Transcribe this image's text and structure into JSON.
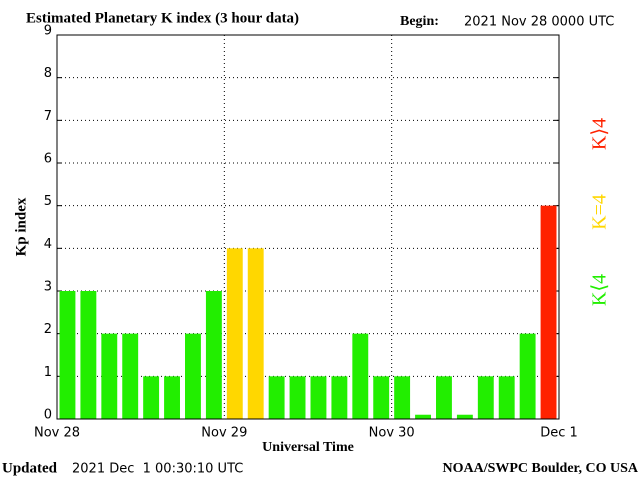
{
  "chart_data": {
    "type": "bar",
    "title": "Estimated Planetary K index (3 hour data)",
    "begin_label": "Begin:",
    "begin": "2021 Nov 28 0000 UTC",
    "y_label": "Kp index",
    "x_label": "Universal Time",
    "updated_label": "Updated",
    "updated": "2021 Dec  1 00:30:10 UTC",
    "credit": "NOAA/SWPC Boulder, CO USA",
    "values": [
      3,
      3,
      2,
      2,
      1,
      1,
      2,
      3,
      4,
      4,
      1,
      1,
      1,
      1,
      2,
      1,
      1,
      0.1,
      1,
      0.1,
      1,
      1,
      2,
      5
    ],
    "colors": [
      "#22ee00",
      "#22ee00",
      "#22ee00",
      "#22ee00",
      "#22ee00",
      "#22ee00",
      "#22ee00",
      "#22ee00",
      "#ffd700",
      "#ffd700",
      "#22ee00",
      "#22ee00",
      "#22ee00",
      "#22ee00",
      "#22ee00",
      "#22ee00",
      "#22ee00",
      "#22ee00",
      "#22ee00",
      "#22ee00",
      "#22ee00",
      "#22ee00",
      "#22ee00",
      "#ff2200"
    ],
    "legend": [
      {
        "name": "K⟨4",
        "color": "#22ee00"
      },
      {
        "name": "K=4",
        "color": "#ffd700"
      },
      {
        "name": "K⟩4",
        "color": "#ff2200"
      }
    ],
    "xlim": [
      0,
      24
    ],
    "xticks": [
      {
        "value": 0,
        "label": "Nov 28"
      },
      {
        "value": 8,
        "label": "Nov 29"
      },
      {
        "value": 16,
        "label": "Nov 30"
      },
      {
        "value": 24,
        "label": "Dec 1"
      }
    ],
    "ylim": [
      0,
      9
    ],
    "yticks": [
      0,
      1,
      2,
      3,
      4,
      5,
      6,
      7,
      8,
      9
    ],
    "grid": true
  }
}
